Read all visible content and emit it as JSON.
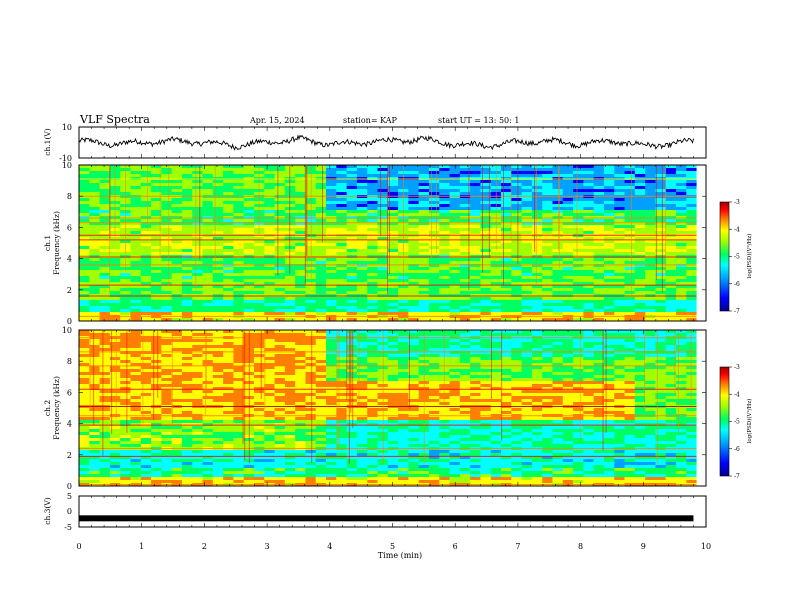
{
  "header": {
    "title": "VLF Spectra",
    "date": "Apr. 15, 2024",
    "station": "station= KAP",
    "start": "start  UT  =   13: 50: 1"
  },
  "colors": {
    "waveform": "#000000",
    "spectrogram_palette": [
      "#000090",
      "#0000ff",
      "#00a0ff",
      "#00ffff",
      "#00ff60",
      "#a0ff00",
      "#ffff00",
      "#ff8000",
      "#ff0000",
      "#a00000"
    ]
  },
  "chart_data": [
    {
      "type": "line",
      "panel": "ch1-waveform",
      "ylabel": "ch.1(V)",
      "ylim": [
        -10,
        10
      ],
      "yticklabels": [
        "10",
        "-10"
      ],
      "xlim": [
        0,
        10
      ],
      "x": [
        0,
        0.5,
        1,
        1.5,
        2,
        2.5,
        3,
        3.5,
        4,
        4.5,
        5,
        5.5,
        6,
        6.5,
        7,
        7.5,
        8,
        8.5,
        9,
        9.5,
        9.8
      ],
      "y": [
        1,
        -1,
        0,
        1,
        0,
        -2,
        0,
        2,
        -1,
        0,
        1,
        2,
        -1,
        -2,
        0,
        1,
        -1,
        1,
        -2,
        -1,
        1
      ]
    },
    {
      "type": "heatmap",
      "panel": "ch1-spectrogram",
      "ylabel": "ch.1",
      "ylabel2": "Frequency (kHz)",
      "yticklabels": [
        "0",
        "2",
        "4",
        "6",
        "8",
        "10"
      ],
      "ylim": [
        0,
        10
      ],
      "xlim": [
        0,
        9.85
      ],
      "colorbar": {
        "label": "log(PSD)(V²/Hz)",
        "ticklabels": [
          "-3",
          "-4",
          "-5",
          "-6",
          "-7"
        ],
        "range": [
          -7,
          -3
        ]
      }
    },
    {
      "type": "heatmap",
      "panel": "ch2-spectrogram",
      "ylabel": "ch.2",
      "ylabel2": "Frequency (kHz)",
      "yticklabels": [
        "0",
        "2",
        "4",
        "6",
        "8",
        "10"
      ],
      "ylim": [
        0,
        10
      ],
      "xlim": [
        0,
        9.85
      ],
      "colorbar": {
        "label": "log(PSD)(V²/Hz)",
        "ticklabels": [
          "-3",
          "-4",
          "-5",
          "-6",
          "-7"
        ],
        "range": [
          -7,
          -3
        ]
      }
    },
    {
      "type": "line",
      "panel": "ch3-waveform",
      "ylabel": "ch.3(V)",
      "ylim": [
        -5,
        5
      ],
      "yticklabels": [
        "5",
        "0",
        "-5"
      ],
      "xlim": [
        0,
        10
      ],
      "x": [
        0,
        9.8
      ],
      "y": [
        -2.2,
        -2.2
      ]
    }
  ],
  "x_axis": {
    "label": "Time (min)",
    "ticklabels": [
      "0",
      "1",
      "2",
      "3",
      "4",
      "5",
      "6",
      "7",
      "8",
      "9",
      "10"
    ]
  }
}
